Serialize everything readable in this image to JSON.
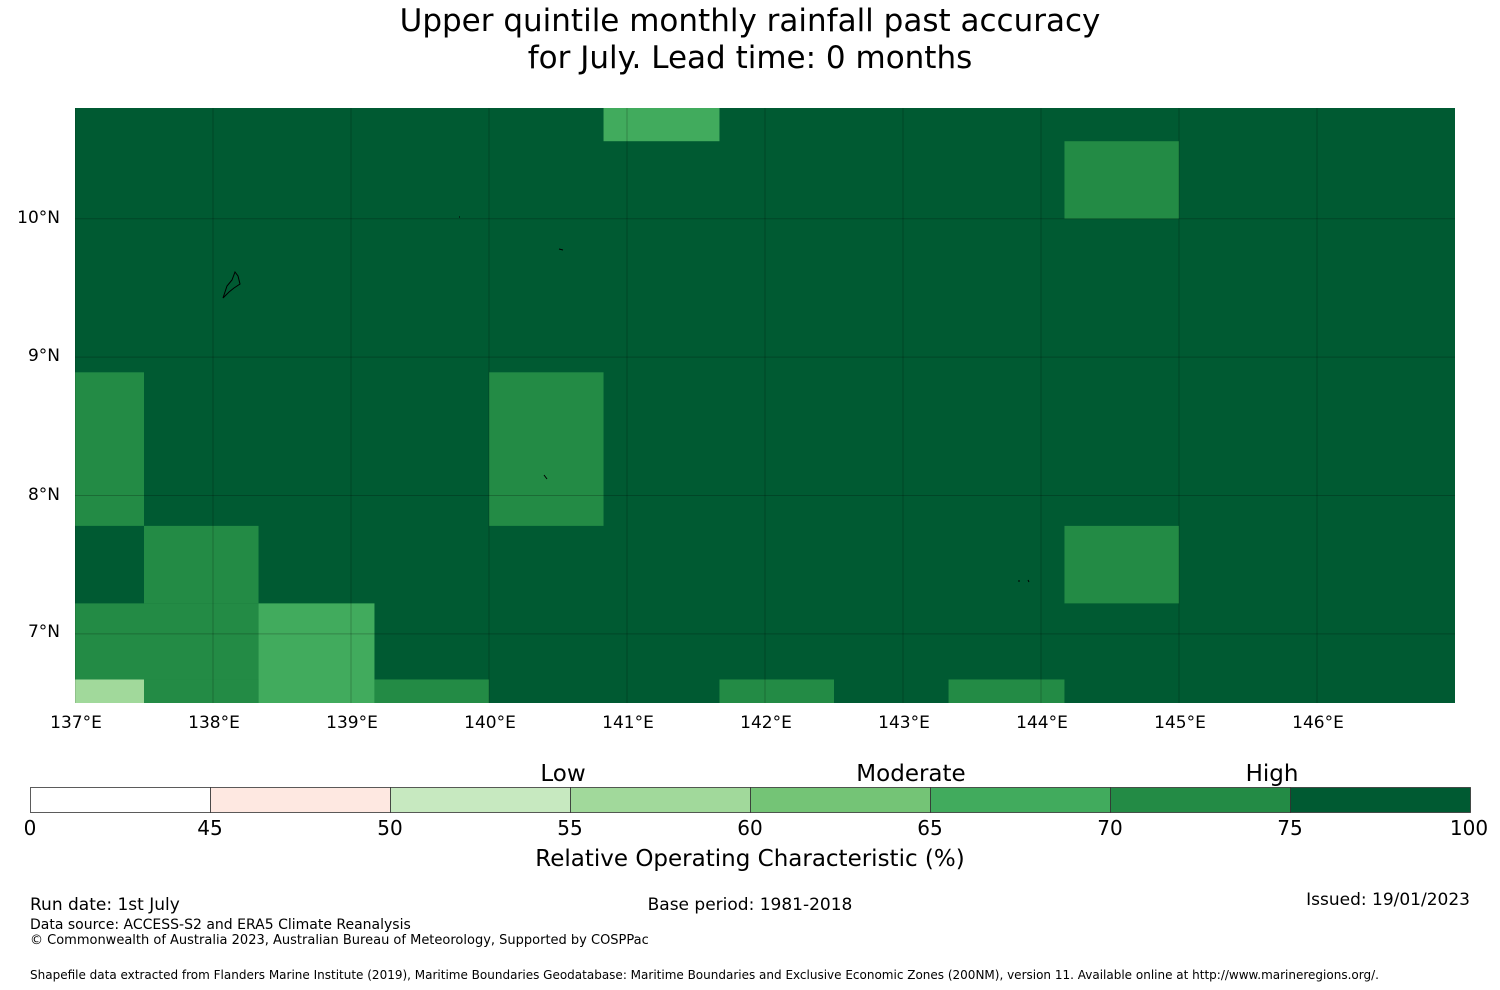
{
  "header": {
    "title_line1": "Upper quintile monthly rainfall past accuracy",
    "title_line2": "for July. Lead time: 0 months"
  },
  "map": {
    "lon_labels": [
      "137°E",
      "138°E",
      "139°E",
      "140°E",
      "141°E",
      "142°E",
      "143°E",
      "144°E",
      "145°E",
      "146°E"
    ],
    "lat_labels": [
      "10°N",
      "9°N",
      "8°N",
      "7°N"
    ],
    "lon_range": [
      137.0,
      147.0
    ],
    "lat_range": [
      6.5,
      10.8
    ],
    "background_color": "#005a32",
    "gridlines": true,
    "cells_lon_lat_roc": [
      {
        "lon": [
          140.83,
          141.67
        ],
        "lat": [
          10.56,
          10.8
        ],
        "roc": 67
      },
      {
        "lon": [
          144.17,
          145.0
        ],
        "lat": [
          10.0,
          10.56
        ],
        "roc": 72
      },
      {
        "lon": [
          137.0,
          137.5
        ],
        "lat": [
          7.78,
          8.89
        ],
        "roc": 72
      },
      {
        "lon": [
          140.0,
          140.83
        ],
        "lat": [
          7.78,
          8.89
        ],
        "roc": 72
      },
      {
        "lon": [
          137.5,
          138.33
        ],
        "lat": [
          7.22,
          7.78
        ],
        "roc": 72
      },
      {
        "lon": [
          144.17,
          145.0
        ],
        "lat": [
          7.22,
          7.78
        ],
        "roc": 72
      },
      {
        "lon": [
          137.0,
          138.33
        ],
        "lat": [
          6.67,
          7.22
        ],
        "roc": 72
      },
      {
        "lon": [
          138.33,
          139.17
        ],
        "lat": [
          6.5,
          7.22
        ],
        "roc": 67
      },
      {
        "lon": [
          137.5,
          138.33
        ],
        "lat": [
          6.5,
          6.67
        ],
        "roc": 72
      },
      {
        "lon": [
          137.0,
          137.5
        ],
        "lat": [
          6.5,
          6.67
        ],
        "roc": 57
      },
      {
        "lon": [
          139.17,
          140.0
        ],
        "lat": [
          6.5,
          6.67
        ],
        "roc": 72
      },
      {
        "lon": [
          141.67,
          142.5
        ],
        "lat": [
          6.5,
          6.67
        ],
        "roc": 72
      },
      {
        "lon": [
          143.33,
          144.17
        ],
        "lat": [
          6.5,
          6.67
        ],
        "roc": 72
      }
    ]
  },
  "colorbar": {
    "categories": [
      "Low",
      "Moderate",
      "High"
    ],
    "ticks": [
      "0",
      "45",
      "50",
      "55",
      "60",
      "65",
      "70",
      "75",
      "100"
    ],
    "colors": [
      "#ffffff",
      "#fee8e1",
      "#c7e9c0",
      "#a1d99b",
      "#74c476",
      "#41ab5d",
      "#238b45",
      "#005a32"
    ],
    "label": "Relative Operating Characteristic (%)"
  },
  "footer": {
    "run_date": "Run date: 1st July",
    "base_period": "Base period: 1981-2018",
    "issued": "Issued: 19/01/2023",
    "data_source": "Data source: ACCESS-S2 and ERA5 Climate Reanalysis",
    "copyright": "© Commonwealth of Australia 2023, Australian Bureau of Meteorology, Supported by COSPPac",
    "shapefile": "Shapefile data extracted from Flanders Marine Institute (2019), Maritime Boundaries Geodatabase: Maritime Boundaries and Exclusive Economic Zones (200NM), version 11. Available online at http://www.marineregions.org/."
  }
}
